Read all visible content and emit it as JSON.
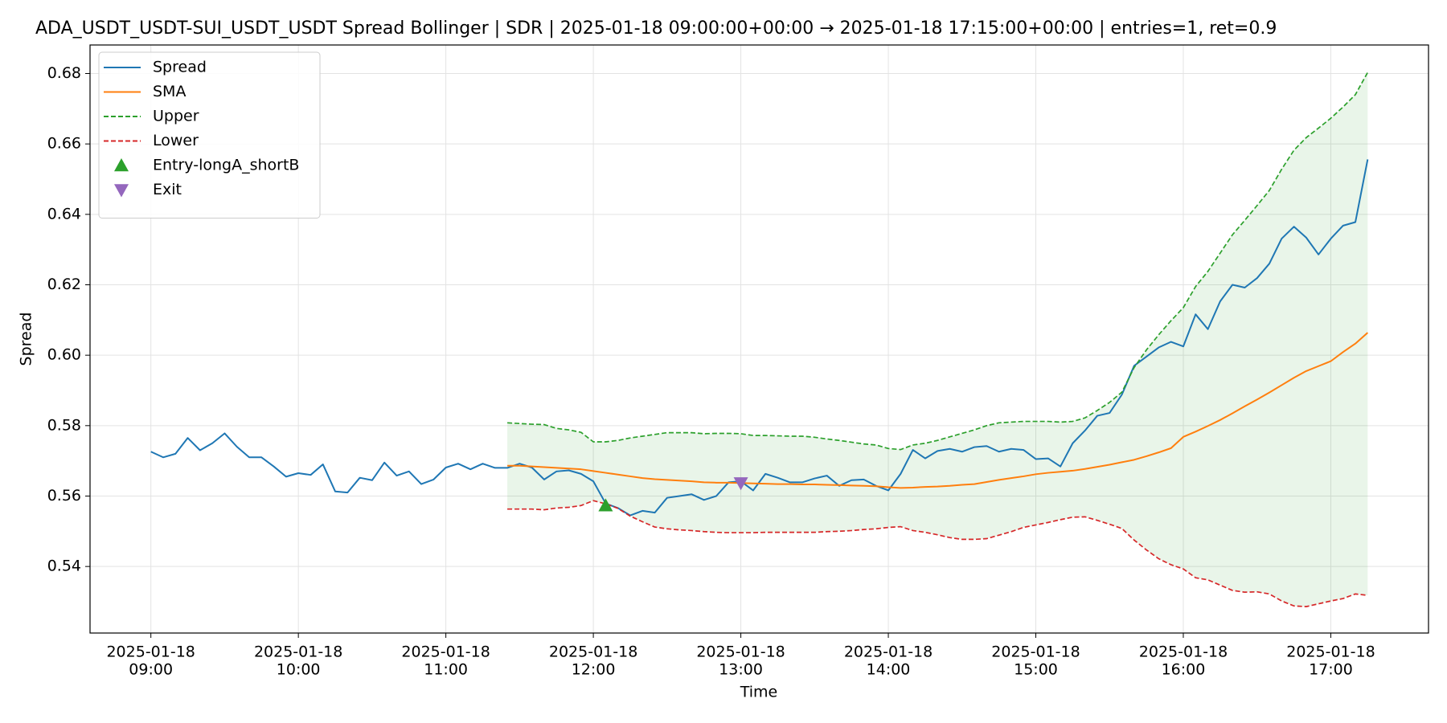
{
  "chart_data": {
    "type": "line",
    "title": "ADA_USDT_USDT-SUI_USDT_USDT Spread Bollinger  | SDR | 2025-01-18 09:00:00+00:00 → 2025-01-18 17:15:00+00:00 | entries=1, ret=0.9",
    "x_label": "Time",
    "y_label": "Spread",
    "x": [
      "2025-01-18 09:00",
      "2025-01-18 09:05",
      "2025-01-18 09:10",
      "2025-01-18 09:15",
      "2025-01-18 09:20",
      "2025-01-18 09:25",
      "2025-01-18 09:30",
      "2025-01-18 09:35",
      "2025-01-18 09:40",
      "2025-01-18 09:45",
      "2025-01-18 09:50",
      "2025-01-18 09:55",
      "2025-01-18 10:00",
      "2025-01-18 10:05",
      "2025-01-18 10:10",
      "2025-01-18 10:15",
      "2025-01-18 10:20",
      "2025-01-18 10:25",
      "2025-01-18 10:30",
      "2025-01-18 10:35",
      "2025-01-18 10:40",
      "2025-01-18 10:45",
      "2025-01-18 10:50",
      "2025-01-18 10:55",
      "2025-01-18 11:00",
      "2025-01-18 11:05",
      "2025-01-18 11:10",
      "2025-01-18 11:15",
      "2025-01-18 11:20",
      "2025-01-18 11:25",
      "2025-01-18 11:30",
      "2025-01-18 11:35",
      "2025-01-18 11:40",
      "2025-01-18 11:45",
      "2025-01-18 11:50",
      "2025-01-18 11:55",
      "2025-01-18 12:00",
      "2025-01-18 12:05",
      "2025-01-18 12:10",
      "2025-01-18 12:15",
      "2025-01-18 12:20",
      "2025-01-18 12:25",
      "2025-01-18 12:30",
      "2025-01-18 12:35",
      "2025-01-18 12:40",
      "2025-01-18 12:45",
      "2025-01-18 12:50",
      "2025-01-18 12:55",
      "2025-01-18 13:00",
      "2025-01-18 13:05",
      "2025-01-18 13:10",
      "2025-01-18 13:15",
      "2025-01-18 13:20",
      "2025-01-18 13:25",
      "2025-01-18 13:30",
      "2025-01-18 13:35",
      "2025-01-18 13:40",
      "2025-01-18 13:45",
      "2025-01-18 13:50",
      "2025-01-18 13:55",
      "2025-01-18 14:00",
      "2025-01-18 14:05",
      "2025-01-18 14:10",
      "2025-01-18 14:15",
      "2025-01-18 14:20",
      "2025-01-18 14:25",
      "2025-01-18 14:30",
      "2025-01-18 14:35",
      "2025-01-18 14:40",
      "2025-01-18 14:45",
      "2025-01-18 14:50",
      "2025-01-18 14:55",
      "2025-01-18 15:00",
      "2025-01-18 15:05",
      "2025-01-18 15:10",
      "2025-01-18 15:15",
      "2025-01-18 15:20",
      "2025-01-18 15:25",
      "2025-01-18 15:30",
      "2025-01-18 15:35",
      "2025-01-18 15:40",
      "2025-01-18 15:45",
      "2025-01-18 15:50",
      "2025-01-18 15:55",
      "2025-01-18 16:00",
      "2025-01-18 16:05",
      "2025-01-18 16:10",
      "2025-01-18 16:15",
      "2025-01-18 16:20",
      "2025-01-18 16:25",
      "2025-01-18 16:30",
      "2025-01-18 16:35",
      "2025-01-18 16:40",
      "2025-01-18 16:45",
      "2025-01-18 16:50",
      "2025-01-18 16:55",
      "2025-01-18 17:00",
      "2025-01-18 17:05",
      "2025-01-18 17:10",
      "2025-01-18 17:15"
    ],
    "series": [
      {
        "name": "Spread",
        "color": "#1f77b4",
        "style": "solid",
        "values": [
          0.5726,
          0.571,
          0.572,
          0.5765,
          0.573,
          0.575,
          0.5778,
          0.574,
          0.571,
          0.571,
          0.5684,
          0.5655,
          0.5665,
          0.566,
          0.569,
          0.5613,
          0.561,
          0.5652,
          0.5645,
          0.5695,
          0.5658,
          0.567,
          0.5634,
          0.5647,
          0.5681,
          0.5692,
          0.5676,
          0.5692,
          0.568,
          0.568,
          0.5692,
          0.5681,
          0.5647,
          0.567,
          0.5673,
          0.5663,
          0.5642,
          0.5579,
          0.5566,
          0.5545,
          0.5558,
          0.5553,
          0.5595,
          0.56,
          0.5605,
          0.5589,
          0.56,
          0.5639,
          0.5642,
          0.5616,
          0.5663,
          0.5652,
          0.5639,
          0.5639,
          0.565,
          0.5658,
          0.5629,
          0.5645,
          0.5647,
          0.5629,
          0.5616,
          0.5663,
          0.5731,
          0.5707,
          0.5728,
          0.5734,
          0.5726,
          0.5739,
          0.5742,
          0.5726,
          0.5734,
          0.5731,
          0.5705,
          0.5707,
          0.5684,
          0.575,
          0.5786,
          0.5828,
          0.5836,
          0.5888,
          0.597,
          0.5996,
          0.6022,
          0.6038,
          0.6025,
          0.6116,
          0.6074,
          0.6153,
          0.62,
          0.6192,
          0.6219,
          0.626,
          0.6331,
          0.6365,
          0.6334,
          0.6286,
          0.6331,
          0.6368,
          0.6378,
          0.6556
        ]
      },
      {
        "name": "SMA",
        "color": "#ff7f0e",
        "style": "solid",
        "values": [
          null,
          null,
          null,
          null,
          null,
          null,
          null,
          null,
          null,
          null,
          null,
          null,
          null,
          null,
          null,
          null,
          null,
          null,
          null,
          null,
          null,
          null,
          null,
          null,
          null,
          null,
          null,
          null,
          null,
          0.5686,
          0.5686,
          0.5684,
          0.5682,
          0.568,
          0.5678,
          0.5676,
          0.5671,
          0.5666,
          0.5661,
          0.5656,
          0.5651,
          0.5648,
          0.5646,
          0.5644,
          0.5642,
          0.5639,
          0.5638,
          0.5638,
          0.5637,
          0.5636,
          0.5635,
          0.5634,
          0.5634,
          0.5633,
          0.5633,
          0.5632,
          0.5631,
          0.563,
          0.5629,
          0.5628,
          0.5625,
          0.5623,
          0.5624,
          0.5626,
          0.5627,
          0.5629,
          0.5632,
          0.5634,
          0.564,
          0.5646,
          0.5651,
          0.5656,
          0.5662,
          0.5666,
          0.5669,
          0.5672,
          0.5677,
          0.5683,
          0.5689,
          0.5696,
          0.5703,
          0.5713,
          0.5724,
          0.5736,
          0.5768,
          0.5783,
          0.5799,
          0.5816,
          0.5835,
          0.5855,
          0.5874,
          0.5894,
          0.5915,
          0.5936,
          0.5955,
          0.5969,
          0.5983,
          0.6009,
          0.6033,
          0.6064
        ]
      },
      {
        "name": "Upper",
        "color": "#2ca02c",
        "style": "dashed",
        "values": [
          null,
          null,
          null,
          null,
          null,
          null,
          null,
          null,
          null,
          null,
          null,
          null,
          null,
          null,
          null,
          null,
          null,
          null,
          null,
          null,
          null,
          null,
          null,
          null,
          null,
          null,
          null,
          null,
          null,
          0.5808,
          0.5806,
          0.5804,
          0.5803,
          0.5792,
          0.5788,
          0.5781,
          0.5754,
          0.5754,
          0.5758,
          0.5765,
          0.577,
          0.5775,
          0.578,
          0.578,
          0.578,
          0.5777,
          0.5778,
          0.5778,
          0.5777,
          0.5772,
          0.5772,
          0.5771,
          0.577,
          0.577,
          0.5767,
          0.5762,
          0.5758,
          0.5753,
          0.5748,
          0.5745,
          0.5735,
          0.5732,
          0.5745,
          0.575,
          0.5758,
          0.5768,
          0.5778,
          0.5788,
          0.58,
          0.5808,
          0.581,
          0.5812,
          0.5812,
          0.5812,
          0.581,
          0.5812,
          0.5822,
          0.5843,
          0.5866,
          0.5895,
          0.5965,
          0.6015,
          0.6058,
          0.6098,
          0.6135,
          0.6195,
          0.6238,
          0.629,
          0.6342,
          0.6383,
          0.6425,
          0.6468,
          0.6528,
          0.6582,
          0.6618,
          0.6645,
          0.6673,
          0.6705,
          0.674,
          0.6803
        ]
      },
      {
        "name": "Lower",
        "color": "#d62728",
        "style": "dashed",
        "values": [
          null,
          null,
          null,
          null,
          null,
          null,
          null,
          null,
          null,
          null,
          null,
          null,
          null,
          null,
          null,
          null,
          null,
          null,
          null,
          null,
          null,
          null,
          null,
          null,
          null,
          null,
          null,
          null,
          null,
          0.5563,
          0.5563,
          0.5563,
          0.5561,
          0.5566,
          0.5568,
          0.5573,
          0.5587,
          0.5578,
          0.5565,
          0.5543,
          0.5527,
          0.5512,
          0.5507,
          0.5504,
          0.5502,
          0.5499,
          0.5497,
          0.5496,
          0.5496,
          0.5496,
          0.5497,
          0.5497,
          0.5497,
          0.5497,
          0.5497,
          0.5499,
          0.55,
          0.5502,
          0.5505,
          0.5507,
          0.5511,
          0.5513,
          0.5502,
          0.5497,
          0.549,
          0.5482,
          0.5477,
          0.5477,
          0.5479,
          0.5489,
          0.5499,
          0.5511,
          0.5518,
          0.5525,
          0.5533,
          0.554,
          0.5541,
          0.5531,
          0.552,
          0.5508,
          0.5475,
          0.5447,
          0.5422,
          0.5405,
          0.5393,
          0.5368,
          0.5362,
          0.5347,
          0.5332,
          0.5327,
          0.5328,
          0.5322,
          0.5302,
          0.5288,
          0.5286,
          0.5294,
          0.5302,
          0.5309,
          0.5322,
          0.5318
        ]
      },
      {
        "name": "Entry-longA_shortB",
        "color": "#2ca02c",
        "marker": "triangle-up",
        "x": [
          "2025-01-18 12:05"
        ],
        "values": [
          0.5573
        ]
      },
      {
        "name": "Exit",
        "color": "#9467bd",
        "marker": "triangle-down",
        "x": [
          "2025-01-18 13:00"
        ],
        "values": [
          0.5637
        ]
      }
    ],
    "band_color": "#2ca02c",
    "xlim": [
      "2025-01-18 08:35:15",
      "2025-01-18 17:39:45"
    ],
    "xticks": [
      {
        "value": "2025-01-18 09:00",
        "label": [
          "2025-01-18",
          "09:00"
        ]
      },
      {
        "value": "2025-01-18 10:00",
        "label": [
          "2025-01-18",
          "10:00"
        ]
      },
      {
        "value": "2025-01-18 11:00",
        "label": [
          "2025-01-18",
          "11:00"
        ]
      },
      {
        "value": "2025-01-18 12:00",
        "label": [
          "2025-01-18",
          "12:00"
        ]
      },
      {
        "value": "2025-01-18 13:00",
        "label": [
          "2025-01-18",
          "13:00"
        ]
      },
      {
        "value": "2025-01-18 14:00",
        "label": [
          "2025-01-18",
          "14:00"
        ]
      },
      {
        "value": "2025-01-18 15:00",
        "label": [
          "2025-01-18",
          "15:00"
        ]
      },
      {
        "value": "2025-01-18 16:00",
        "label": [
          "2025-01-18",
          "16:00"
        ]
      },
      {
        "value": "2025-01-18 17:00",
        "label": [
          "2025-01-18",
          "17:00"
        ]
      }
    ],
    "ylim": [
      0.5211,
      0.6881
    ],
    "yticks": [
      0.54,
      0.56,
      0.58,
      {
        "value": 0.6,
        "label": "0.60"
      },
      0.62,
      0.64,
      0.66,
      0.68
    ],
    "grid": true,
    "legend": "upper left"
  }
}
